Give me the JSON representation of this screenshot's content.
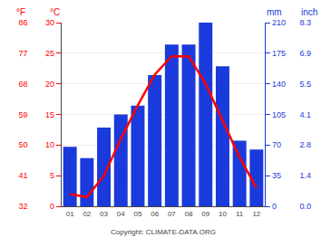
{
  "chart_data": {
    "type": "bar",
    "categories": [
      "01",
      "02",
      "03",
      "04",
      "05",
      "06",
      "07",
      "08",
      "09",
      "10",
      "11",
      "12"
    ],
    "series": [
      {
        "type": "bar",
        "axis": "y2",
        "color": "#1a3adb",
        "values": [
          68,
          55,
          90,
          105,
          115,
          150,
          185,
          185,
          210,
          160,
          75,
          65
        ]
      },
      {
        "type": "line",
        "color": "#ff0000",
        "values": [
          2.0,
          1.5,
          5.0,
          11.0,
          16.5,
          21.5,
          24.5,
          24.5,
          20.0,
          14.0,
          8.0,
          3.0
        ]
      }
    ],
    "ylabel": "°C",
    "ylim": [
      0,
      30
    ],
    "yticks": [
      0,
      5,
      10,
      15,
      20,
      25,
      30
    ],
    "y2label": "mm",
    "y2lim": [
      0,
      210
    ],
    "y2ticks": [
      0,
      35,
      70,
      105,
      140,
      175,
      210
    ],
    "y3label": "°F",
    "y3lim": [
      32,
      86
    ],
    "y3ticks": [
      32,
      41,
      50,
      59,
      68,
      77,
      86
    ],
    "y4label": "inch",
    "y4lim": [
      0,
      210
    ],
    "y4ticks": [
      {
        "value": 0,
        "label": "0.0"
      },
      {
        "value": 35,
        "label": "1.4"
      },
      {
        "value": 70,
        "label": "2.8"
      },
      {
        "value": 105,
        "label": "4.1"
      },
      {
        "value": 140,
        "label": "5.5"
      },
      {
        "value": 175,
        "label": "6.9"
      },
      {
        "value": 210,
        "label": "8.3"
      }
    ],
    "annotations": [
      "Copyright: CLIMATE-DATA.ORG"
    ],
    "grid": true
  }
}
